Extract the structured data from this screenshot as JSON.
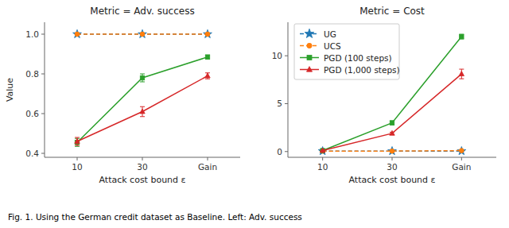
{
  "chart_data": [
    {
      "type": "line",
      "title": "Metric = Adv. success",
      "x_label": "Attack cost bound ε",
      "y_label": "Value",
      "categories": [
        "10",
        "30",
        "Gain"
      ],
      "series": [
        {
          "name": "UG",
          "color": "#1f77b4",
          "marker": "star",
          "line_style": "dashed",
          "values": [
            1.0,
            1.0,
            1.0
          ],
          "errors": [
            0.0,
            0.0,
            0.0
          ]
        },
        {
          "name": "UCS",
          "color": "#ff7f0e",
          "marker": "circle",
          "line_style": "dashed",
          "values": [
            1.0,
            1.0,
            1.0
          ],
          "errors": [
            0.0,
            0.0,
            0.0
          ]
        },
        {
          "name": "PGD (100 steps)",
          "color": "#2ca02c",
          "marker": "square",
          "line_style": "solid",
          "values": [
            0.455,
            0.78,
            0.885
          ],
          "errors": [
            0.02,
            0.02,
            0.01
          ]
        },
        {
          "name": "PGD (1,000 steps)",
          "color": "#d62728",
          "marker": "triangle",
          "line_style": "solid",
          "values": [
            0.46,
            0.61,
            0.79
          ],
          "errors": [
            0.02,
            0.025,
            0.015
          ]
        }
      ],
      "ylim": [
        0.38,
        1.06
      ],
      "yticks": [
        0.4,
        0.6,
        0.8,
        {
          "value": 1.0,
          "label": "1.0"
        }
      ],
      "grid": false,
      "annotations": [
        "Fig. 1.  Using the German credit dataset as Baseline.  Left: Adv. success"
      ]
    },
    {
      "type": "line",
      "title": "Metric = Cost",
      "x_label": "Attack cost bound ε",
      "categories": [
        "10",
        "30",
        "Gain"
      ],
      "series": [
        {
          "name": "UG",
          "color": "#1f77b4",
          "marker": "star",
          "line_style": "dashed",
          "values": [
            0.05,
            0.05,
            0.05
          ],
          "errors": [
            0.0,
            0.0,
            0.0
          ]
        },
        {
          "name": "UCS",
          "color": "#ff7f0e",
          "marker": "circle",
          "line_style": "dashed",
          "values": [
            0.05,
            0.05,
            0.1
          ],
          "errors": [
            0.0,
            0.0,
            0.0
          ]
        },
        {
          "name": "PGD (100 steps)",
          "color": "#2ca02c",
          "marker": "square",
          "line_style": "solid",
          "values": [
            0.1,
            3.0,
            12.0
          ],
          "errors": [
            0.05,
            0.2,
            0.25
          ]
        },
        {
          "name": "PGD (1,000 steps)",
          "color": "#d62728",
          "marker": "triangle",
          "line_style": "solid",
          "values": [
            0.1,
            1.9,
            8.1
          ],
          "errors": [
            0.05,
            0.12,
            0.5
          ]
        }
      ],
      "ylim": [
        -0.6,
        13.5
      ],
      "yticks": [
        0,
        5,
        10
      ],
      "grid": false,
      "legend": "upper left"
    }
  ]
}
